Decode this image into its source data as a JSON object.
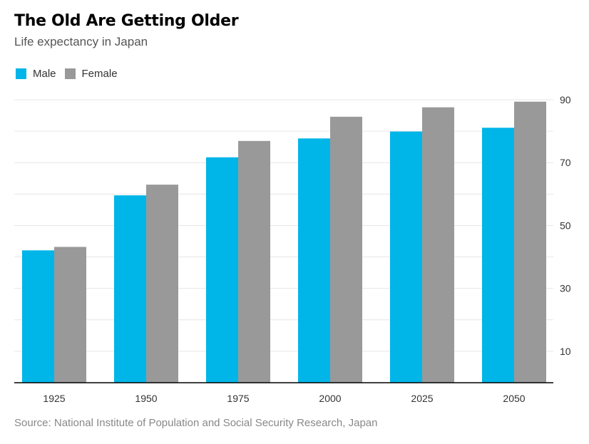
{
  "header": {
    "title": "The Old Are Getting Older",
    "subtitle": "Life expectancy in Japan"
  },
  "footer": {
    "source": "Source: National Institute of Population and Social Security Research, Japan"
  },
  "colors": {
    "male": "#00b5e8",
    "female": "#999999",
    "grid": "#e6e6e6",
    "axis": "#000000"
  },
  "chart_data": {
    "type": "bar",
    "title": "The Old Are Getting Older",
    "subtitle": "Life expectancy in Japan",
    "categories": [
      "1925",
      "1950",
      "1975",
      "2000",
      "2025",
      "2050"
    ],
    "series": [
      {
        "name": "Male",
        "values": [
          42.1,
          59.6,
          71.7,
          77.7,
          79.9,
          81.1
        ]
      },
      {
        "name": "Female",
        "values": [
          43.2,
          63.0,
          76.9,
          84.6,
          87.6,
          89.4
        ]
      }
    ],
    "ylim": [
      0,
      90
    ],
    "yticks": [
      10,
      30,
      50,
      70,
      90
    ],
    "y_axis_side": "right",
    "grid": true,
    "legend": "top-left"
  }
}
